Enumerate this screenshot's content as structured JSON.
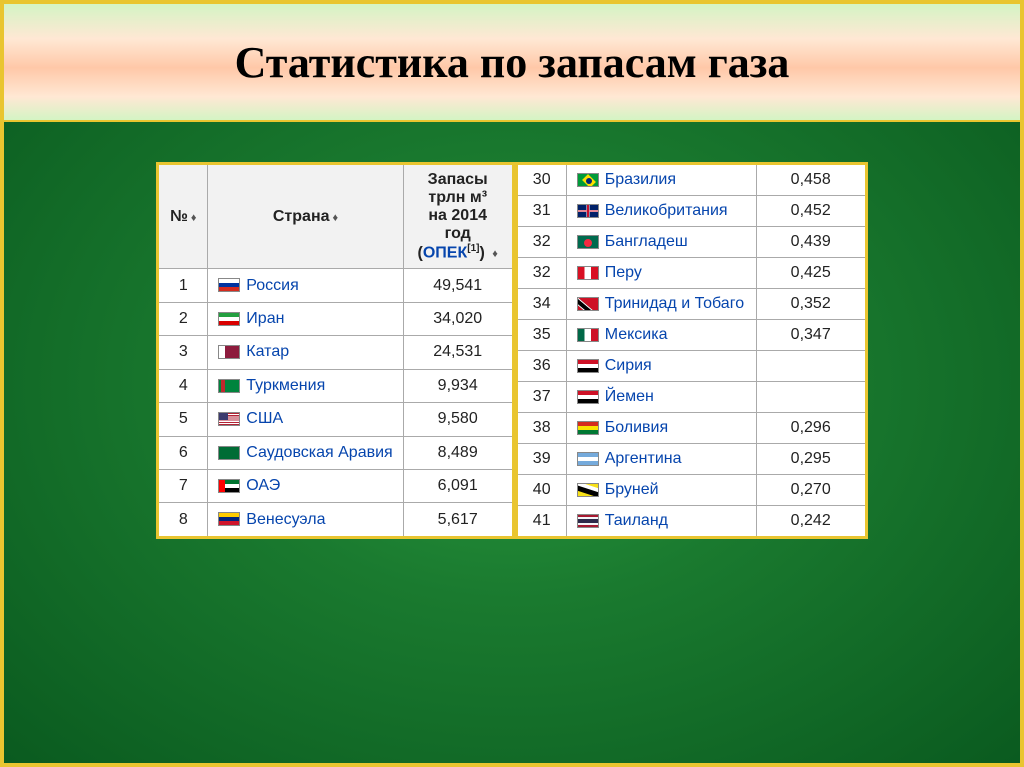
{
  "title": "Статистика по запасам газа",
  "headers": {
    "num": "№",
    "country": "Страна",
    "reserves_l1": "Запасы",
    "reserves_l2": "трлн м³",
    "reserves_l3": "на 2014",
    "reserves_l4": "год",
    "reserves_l5a": "(",
    "reserves_l5b": "ОПЕК",
    "reserves_l5c": "[1]",
    "reserves_l5d": ")"
  },
  "left_rows": [
    {
      "n": "1",
      "flag": "f-ru",
      "country": "Россия",
      "val": "49,541"
    },
    {
      "n": "2",
      "flag": "f-ir",
      "country": "Иран",
      "val": "34,020"
    },
    {
      "n": "3",
      "flag": "f-qa",
      "country": "Катар",
      "val": "24,531"
    },
    {
      "n": "4",
      "flag": "f-tm",
      "country": "Туркмения",
      "val": "9,934"
    },
    {
      "n": "5",
      "flag": "f-us",
      "country": "США",
      "val": "9,580"
    },
    {
      "n": "6",
      "flag": "f-sa",
      "country": "Саудовская Аравия",
      "val": "8,489"
    },
    {
      "n": "7",
      "flag": "f-ae",
      "country": "ОАЭ",
      "val": "6,091"
    },
    {
      "n": "8",
      "flag": "f-ve",
      "country": "Венесуэла",
      "val": "5,617"
    }
  ],
  "right_rows": [
    {
      "n": "30",
      "flag": "f-br",
      "country": "Бразилия",
      "val": "0,458"
    },
    {
      "n": "31",
      "flag": "f-gb",
      "country": "Великобритания",
      "val": "0,452"
    },
    {
      "n": "32",
      "flag": "f-bd",
      "country": "Бангладеш",
      "val": "0,439"
    },
    {
      "n": "32",
      "flag": "f-pe",
      "country": "Перу",
      "val": "0,425"
    },
    {
      "n": "34",
      "flag": "f-tt",
      "country": "Тринидад и Тобаго",
      "val": "0,352"
    },
    {
      "n": "35",
      "flag": "f-mx",
      "country": "Мексика",
      "val": "0,347"
    },
    {
      "n": "36",
      "flag": "f-sy",
      "country": "Сирия",
      "val": ""
    },
    {
      "n": "37",
      "flag": "f-ye",
      "country": "Йемен",
      "val": ""
    },
    {
      "n": "38",
      "flag": "f-bo",
      "country": "Боливия",
      "val": "0,296"
    },
    {
      "n": "39",
      "flag": "f-ar",
      "country": "Аргентина",
      "val": "0,295"
    },
    {
      "n": "40",
      "flag": "f-bn",
      "country": "Бруней",
      "val": "0,270"
    },
    {
      "n": "41",
      "flag": "f-th",
      "country": "Таиланд",
      "val": "0,242"
    }
  ],
  "colors": {
    "frame": "#E9C530",
    "link": "#0645ad",
    "header_bg": "#f2f2f2",
    "cell_border": "#aaaaaa"
  }
}
